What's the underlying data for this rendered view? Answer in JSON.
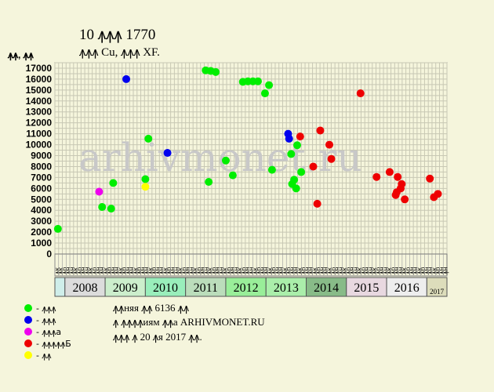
{
  "header": {
    "title": "10 ꙟꙟꙟ 1770",
    "subtitle": "ꙟꙟꙟ Cu, ꙟꙟꙟ XF.",
    "unit_label": "ꙟꙟ, ꙟꙟ"
  },
  "watermark": "arhivmonet.ru",
  "notes": [
    "ꙟꙟняя ꙟꙟ 6136 ꙟꙟ",
    "ꙟ ꙟꙟꙟꙟиям ꙟꙟа ARHIVMONET.RU",
    "ꙟꙟꙟ ꙟ 20 ꙟя 2017 ꙟꙟ."
  ],
  "legend": [
    {
      "label": "- ꙟꙟꙟ",
      "color": "#00ee00"
    },
    {
      "label": "- ꙟꙟꙟ",
      "color": "#0000ee"
    },
    {
      "label": "- ꙟꙟꙟа",
      "color": "#ee00ee"
    },
    {
      "label": "- ꙟꙟꙟꙟꙟБ",
      "color": "#ee0000"
    },
    {
      "label": "- ꙟꙟ",
      "color": "#ffff00"
    }
  ],
  "chart_data": {
    "type": "scatter",
    "ylim": [
      0,
      17500
    ],
    "yticks": [
      0,
      1000,
      2000,
      3000,
      4000,
      5000,
      6000,
      7000,
      8000,
      9000,
      10000,
      11000,
      12000,
      13000,
      14000,
      15000,
      16000,
      17000
    ],
    "half_year_labels": [
      "ꙟк",
      "ꙟк",
      "ꙟр",
      "ꙟн",
      "ꙟн",
      "ꙟк",
      "ꙟр",
      "ꙟн",
      "ꙟн",
      "ꙟк",
      "ꙟр",
      "ꙟн",
      "ꙟн",
      "ꙟк",
      "ꙟр",
      "ꙟн",
      "ꙟн",
      "ꙟк",
      "ꙟр",
      "ꙟн",
      "ꙟн",
      "ꙟк",
      "ꙟр",
      "ꙟн",
      "ꙟн",
      "ꙟк",
      "ꙟр",
      "ꙟн",
      "ꙟн",
      "ꙟк",
      "ꙟр",
      "ꙟн",
      "ꙟн",
      "ꙟк",
      "ꙟр",
      "ꙟн",
      "ꙟн",
      "ꙟк",
      "ꙟр",
      "ꙟн",
      "ꙟн",
      "ꙟк",
      "ꙟр",
      "ꙟн",
      "ꙟн",
      "ꙟк",
      "ꙟр",
      "ꙟн",
      "ꙟн",
      "ꙟк",
      "ꙟр",
      "ꙟн",
      "ꙟн",
      "ꙟк",
      "ꙟр",
      "ꙟн",
      "ꙟн",
      "ꙟк",
      "ꙟр",
      "ꙟн",
      "ꙟн",
      "ꙟк",
      "ꙟр",
      "ꙟн",
      "ꙟн",
      "ꙟк",
      "ꙟр",
      "ꙟн",
      "ꙟн",
      "ꙟк",
      "ꙟр",
      "ꙟн",
      "ꙟн",
      "ꙟк",
      "ꙟр",
      "ꙟн",
      "ꙟн",
      "ꙟк",
      "ꙟр",
      "ꙟн",
      "ꙟн",
      "ꙟк",
      "ꙟр",
      "ꙟн",
      "ꙟн",
      "ꙟк",
      "ꙟр",
      "ꙟн",
      "ꙟн",
      "ꙟк",
      "ꙟр",
      "ꙟн",
      "ꙟн",
      "ꙟк",
      "ꙟр",
      "ꙟн",
      "ꙟн",
      "ꙟк",
      "ꙟр",
      "ꙟн",
      "ꙟн",
      "ꙟк",
      "ꙟр",
      "ꙟн",
      "ꙟн"
    ],
    "years": [
      {
        "label": "",
        "start": 0,
        "span": 1,
        "color": "#cfeeea"
      },
      {
        "label": "2008",
        "start": 1,
        "span": 4,
        "color": "#dcdcdc"
      },
      {
        "label": "2009",
        "start": 5,
        "span": 4,
        "color": "#cceecc"
      },
      {
        "label": "2010",
        "start": 9,
        "span": 4,
        "color": "#99eebb"
      },
      {
        "label": "2011",
        "start": 13,
        "span": 4,
        "color": "#bbddbb"
      },
      {
        "label": "2012",
        "start": 17,
        "span": 4,
        "color": "#99ee99"
      },
      {
        "label": "2013",
        "start": 21,
        "span": 4,
        "color": "#aaeeaa"
      },
      {
        "label": "2014",
        "start": 25,
        "span": 4,
        "color": "#88bb88"
      },
      {
        "label": "2015",
        "start": 29,
        "span": 4,
        "color": "#e8d8e0"
      },
      {
        "label": "2016",
        "start": 33,
        "span": 4,
        "color": "#eeeeee"
      },
      {
        "label": "2017",
        "start": 37,
        "span": 2,
        "color": "#ddddbb",
        "small": true
      }
    ],
    "points": [
      {
        "x": 0.3,
        "y": 2300,
        "c": 0
      },
      {
        "x": 4.4,
        "y": 5700,
        "c": 2
      },
      {
        "x": 4.7,
        "y": 4300,
        "c": 0
      },
      {
        "x": 5.6,
        "y": 4150,
        "c": 0
      },
      {
        "x": 5.8,
        "y": 6500,
        "c": 0
      },
      {
        "x": 7.1,
        "y": 16000,
        "c": 1
      },
      {
        "x": 9.0,
        "y": 6850,
        "c": 0
      },
      {
        "x": 9.0,
        "y": 6150,
        "c": 4
      },
      {
        "x": 9.3,
        "y": 10550,
        "c": 0
      },
      {
        "x": 11.2,
        "y": 9250,
        "c": 1
      },
      {
        "x": 15.0,
        "y": 16800,
        "c": 0
      },
      {
        "x": 15.3,
        "y": 6600,
        "c": 0
      },
      {
        "x": 15.5,
        "y": 16750,
        "c": 0
      },
      {
        "x": 16.0,
        "y": 16650,
        "c": 0
      },
      {
        "x": 17.0,
        "y": 8550,
        "c": 0
      },
      {
        "x": 17.7,
        "y": 7200,
        "c": 0
      },
      {
        "x": 18.7,
        "y": 15750,
        "c": 0
      },
      {
        "x": 19.2,
        "y": 15800,
        "c": 0
      },
      {
        "x": 19.7,
        "y": 15800,
        "c": 0
      },
      {
        "x": 20.2,
        "y": 15800,
        "c": 0
      },
      {
        "x": 20.9,
        "y": 14700,
        "c": 0
      },
      {
        "x": 21.3,
        "y": 15450,
        "c": 0
      },
      {
        "x": 21.6,
        "y": 7700,
        "c": 0
      },
      {
        "x": 23.2,
        "y": 11000,
        "c": 1
      },
      {
        "x": 23.3,
        "y": 10550,
        "c": 1
      },
      {
        "x": 23.5,
        "y": 9150,
        "c": 0
      },
      {
        "x": 23.6,
        "y": 6400,
        "c": 0
      },
      {
        "x": 23.8,
        "y": 6800,
        "c": 0
      },
      {
        "x": 24.0,
        "y": 6000,
        "c": 0
      },
      {
        "x": 24.1,
        "y": 9950,
        "c": 0
      },
      {
        "x": 24.4,
        "y": 10750,
        "c": 3
      },
      {
        "x": 24.5,
        "y": 7500,
        "c": 0
      },
      {
        "x": 25.7,
        "y": 8000,
        "c": 3
      },
      {
        "x": 26.1,
        "y": 4600,
        "c": 3
      },
      {
        "x": 26.4,
        "y": 11300,
        "c": 3
      },
      {
        "x": 27.3,
        "y": 10000,
        "c": 3
      },
      {
        "x": 27.5,
        "y": 8700,
        "c": 3
      },
      {
        "x": 30.4,
        "y": 14700,
        "c": 3
      },
      {
        "x": 32.0,
        "y": 7050,
        "c": 3
      },
      {
        "x": 33.3,
        "y": 7500,
        "c": 3
      },
      {
        "x": 33.9,
        "y": 5400,
        "c": 3
      },
      {
        "x": 34.0,
        "y": 5650,
        "c": 3
      },
      {
        "x": 34.1,
        "y": 7050,
        "c": 3
      },
      {
        "x": 34.4,
        "y": 6000,
        "c": 3
      },
      {
        "x": 34.5,
        "y": 6400,
        "c": 3
      },
      {
        "x": 34.8,
        "y": 5000,
        "c": 3
      },
      {
        "x": 37.3,
        "y": 6900,
        "c": 3
      },
      {
        "x": 37.7,
        "y": 5200,
        "c": 3
      },
      {
        "x": 38.1,
        "y": 5500,
        "c": 3
      }
    ]
  }
}
